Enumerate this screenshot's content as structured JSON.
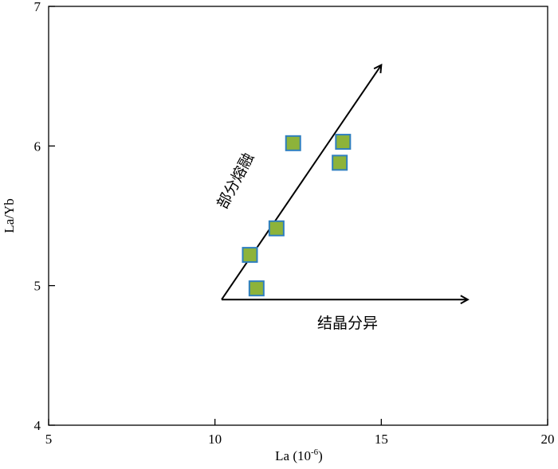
{
  "chart_data": {
    "type": "scatter",
    "xlabel": "La (10",
    "xlabel_sup": "-6",
    "xlabel_close": ")",
    "ylabel": "La/Yb",
    "xlim": [
      5,
      20
    ],
    "ylim": [
      4,
      7
    ],
    "xticks": [
      5,
      10,
      15,
      20
    ],
    "yticks": [
      4,
      5,
      6,
      7
    ],
    "grid": false,
    "marker": {
      "shape": "square",
      "fill": "#8db33a",
      "stroke": "#2f7fbf"
    },
    "points": [
      {
        "x": 12.35,
        "y": 6.02
      },
      {
        "x": 13.85,
        "y": 6.03
      },
      {
        "x": 13.75,
        "y": 5.88
      },
      {
        "x": 11.85,
        "y": 5.41
      },
      {
        "x": 11.05,
        "y": 5.22
      },
      {
        "x": 11.25,
        "y": 4.98
      }
    ],
    "annotations": [
      {
        "text": "部分熔融",
        "kind": "arrow",
        "from": [
          10.2,
          4.9
        ],
        "to": [
          15.0,
          6.58
        ]
      },
      {
        "text": "结晶分异",
        "kind": "arrow",
        "from": [
          10.2,
          4.9
        ],
        "to": [
          17.6,
          4.9
        ]
      }
    ]
  }
}
